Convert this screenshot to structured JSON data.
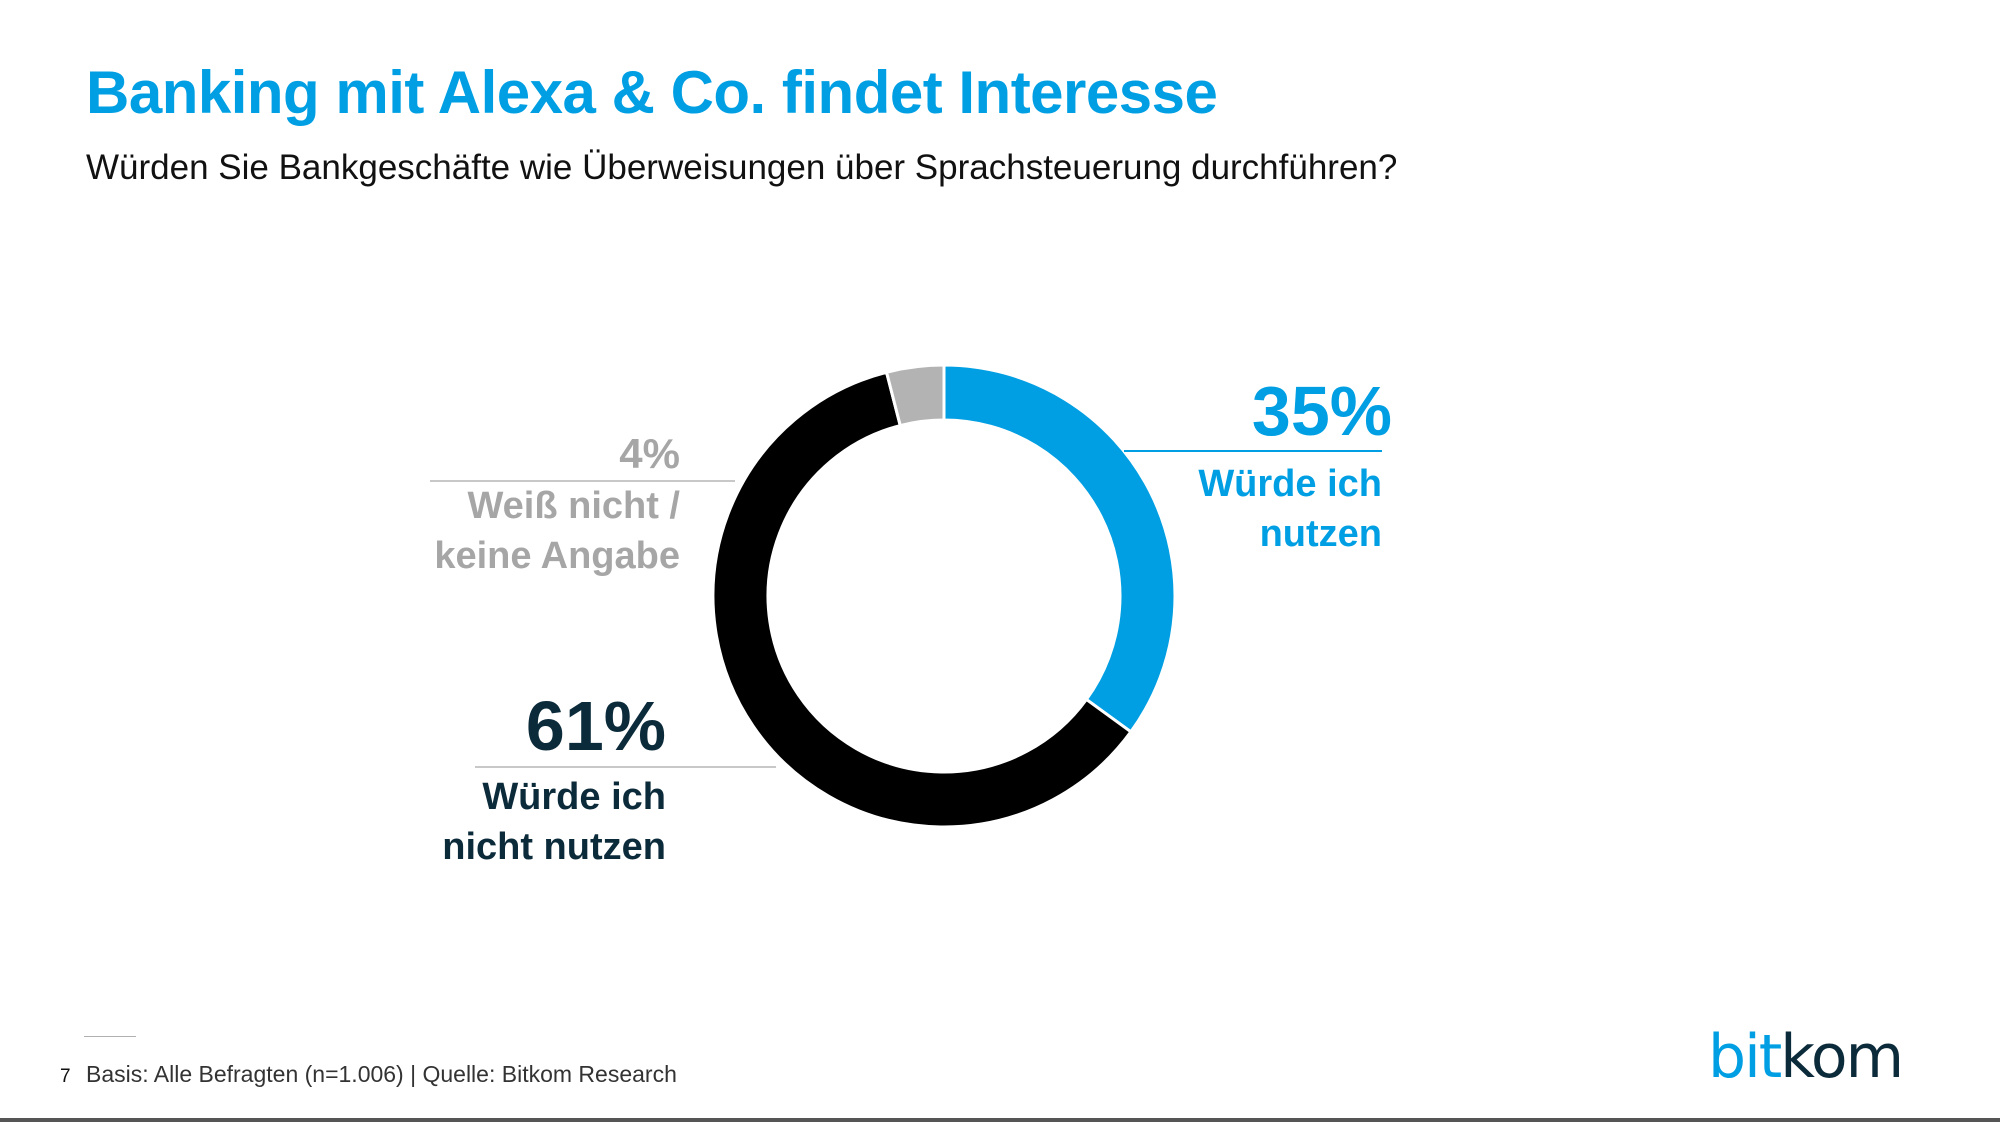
{
  "title": "Banking mit Alexa & Co. findet Interesse",
  "subtitle": "Würden Sie Bankgeschäfte wie Überweisungen über Sprachsteuerung durchführen?",
  "chart_data": {
    "type": "pie",
    "donut": true,
    "slices": [
      {
        "label_lines": [
          "Würde ich",
          "nutzen"
        ],
        "value": 35,
        "value_label": "35%",
        "color": "#009fe3"
      },
      {
        "label_lines": [
          "Würde ich",
          "nicht nutzen"
        ],
        "value": 61,
        "value_label": "61%",
        "color": "#000000"
      },
      {
        "label_lines": [
          "Weiß nicht /",
          "keine Angabe"
        ],
        "value": 4,
        "value_label": "4%",
        "color": "#b3b3b3"
      }
    ],
    "label_colors": [
      "#009fe3",
      "#0b2a3a",
      "#a6a6a6"
    ]
  },
  "footer": {
    "page_number": "7",
    "source": "Basis: Alle Befragten (n=1.006) | Quelle: Bitkom Research"
  },
  "logo": {
    "part1": "bit",
    "part2": "kom",
    "color1": "#009fe3",
    "color2": "#0b2a3a"
  }
}
